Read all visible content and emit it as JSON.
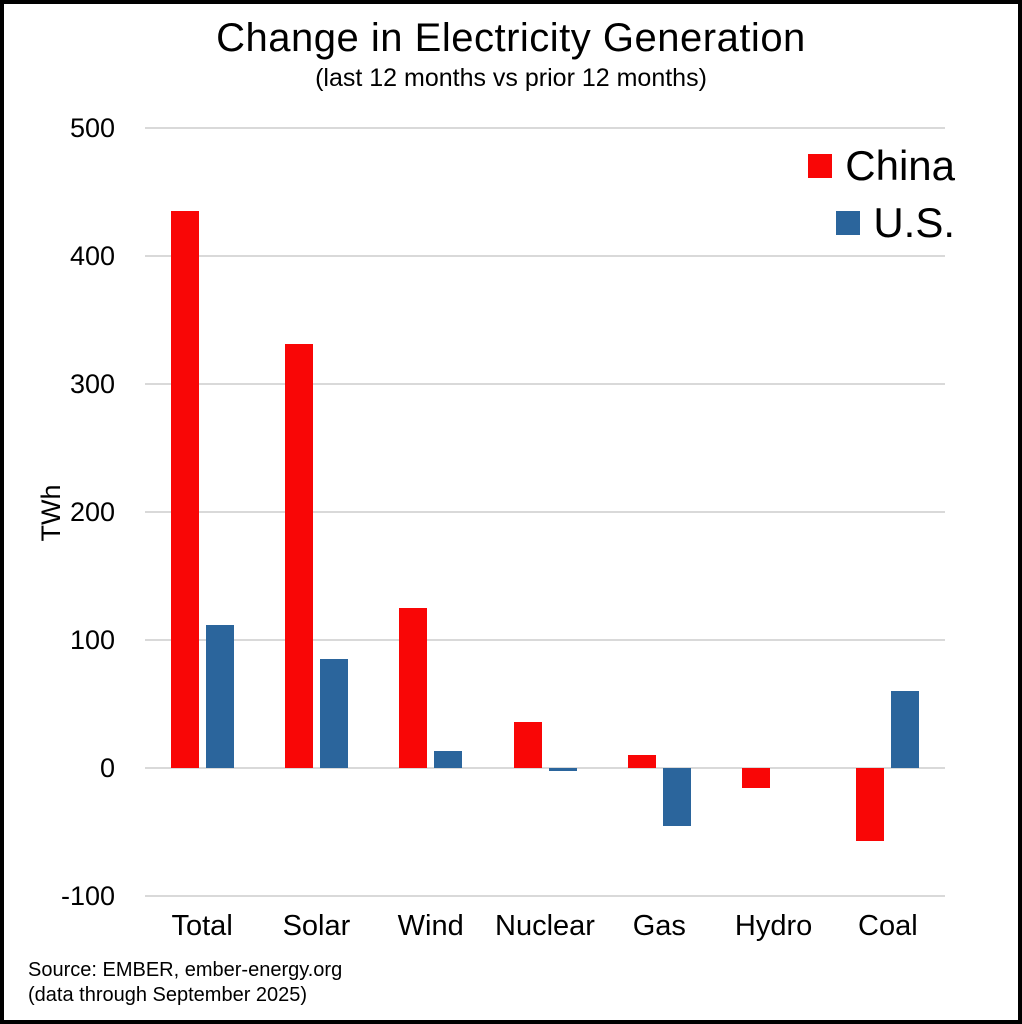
{
  "title": "Change in Electricity Generation",
  "subtitle": "(last 12 months vs prior 12 months)",
  "source": {
    "line1": "Source: EMBER, ember-energy.org",
    "line2": "(data through September 2025)"
  },
  "colors": {
    "china_red": "#f90606",
    "us_blue": "#2b659c",
    "gridline": "#d9d9d9",
    "frame": "#000000",
    "text": "#000000"
  },
  "chart_data": {
    "type": "bar",
    "categories": [
      "Total",
      "Solar",
      "Wind",
      "Nuclear",
      "Gas",
      "Hydro",
      "Coal"
    ],
    "series": [
      {
        "name": "China",
        "color": "#f90606",
        "values": [
          435,
          331,
          125,
          36,
          10,
          -16,
          -57
        ]
      },
      {
        "name": "U.S.",
        "color": "#2b659c",
        "values": [
          112,
          85,
          13,
          -2,
          -45,
          0,
          60
        ]
      }
    ],
    "title": "Change in Electricity Generation",
    "subtitle": "(last 12 months vs prior 12 months)",
    "xlabel": "",
    "ylabel": "TWh",
    "ylim": [
      -100,
      500
    ],
    "yticks": [
      500,
      400,
      300,
      200,
      100,
      0,
      -100
    ],
    "grid": true,
    "legend_position": "top-right"
  }
}
